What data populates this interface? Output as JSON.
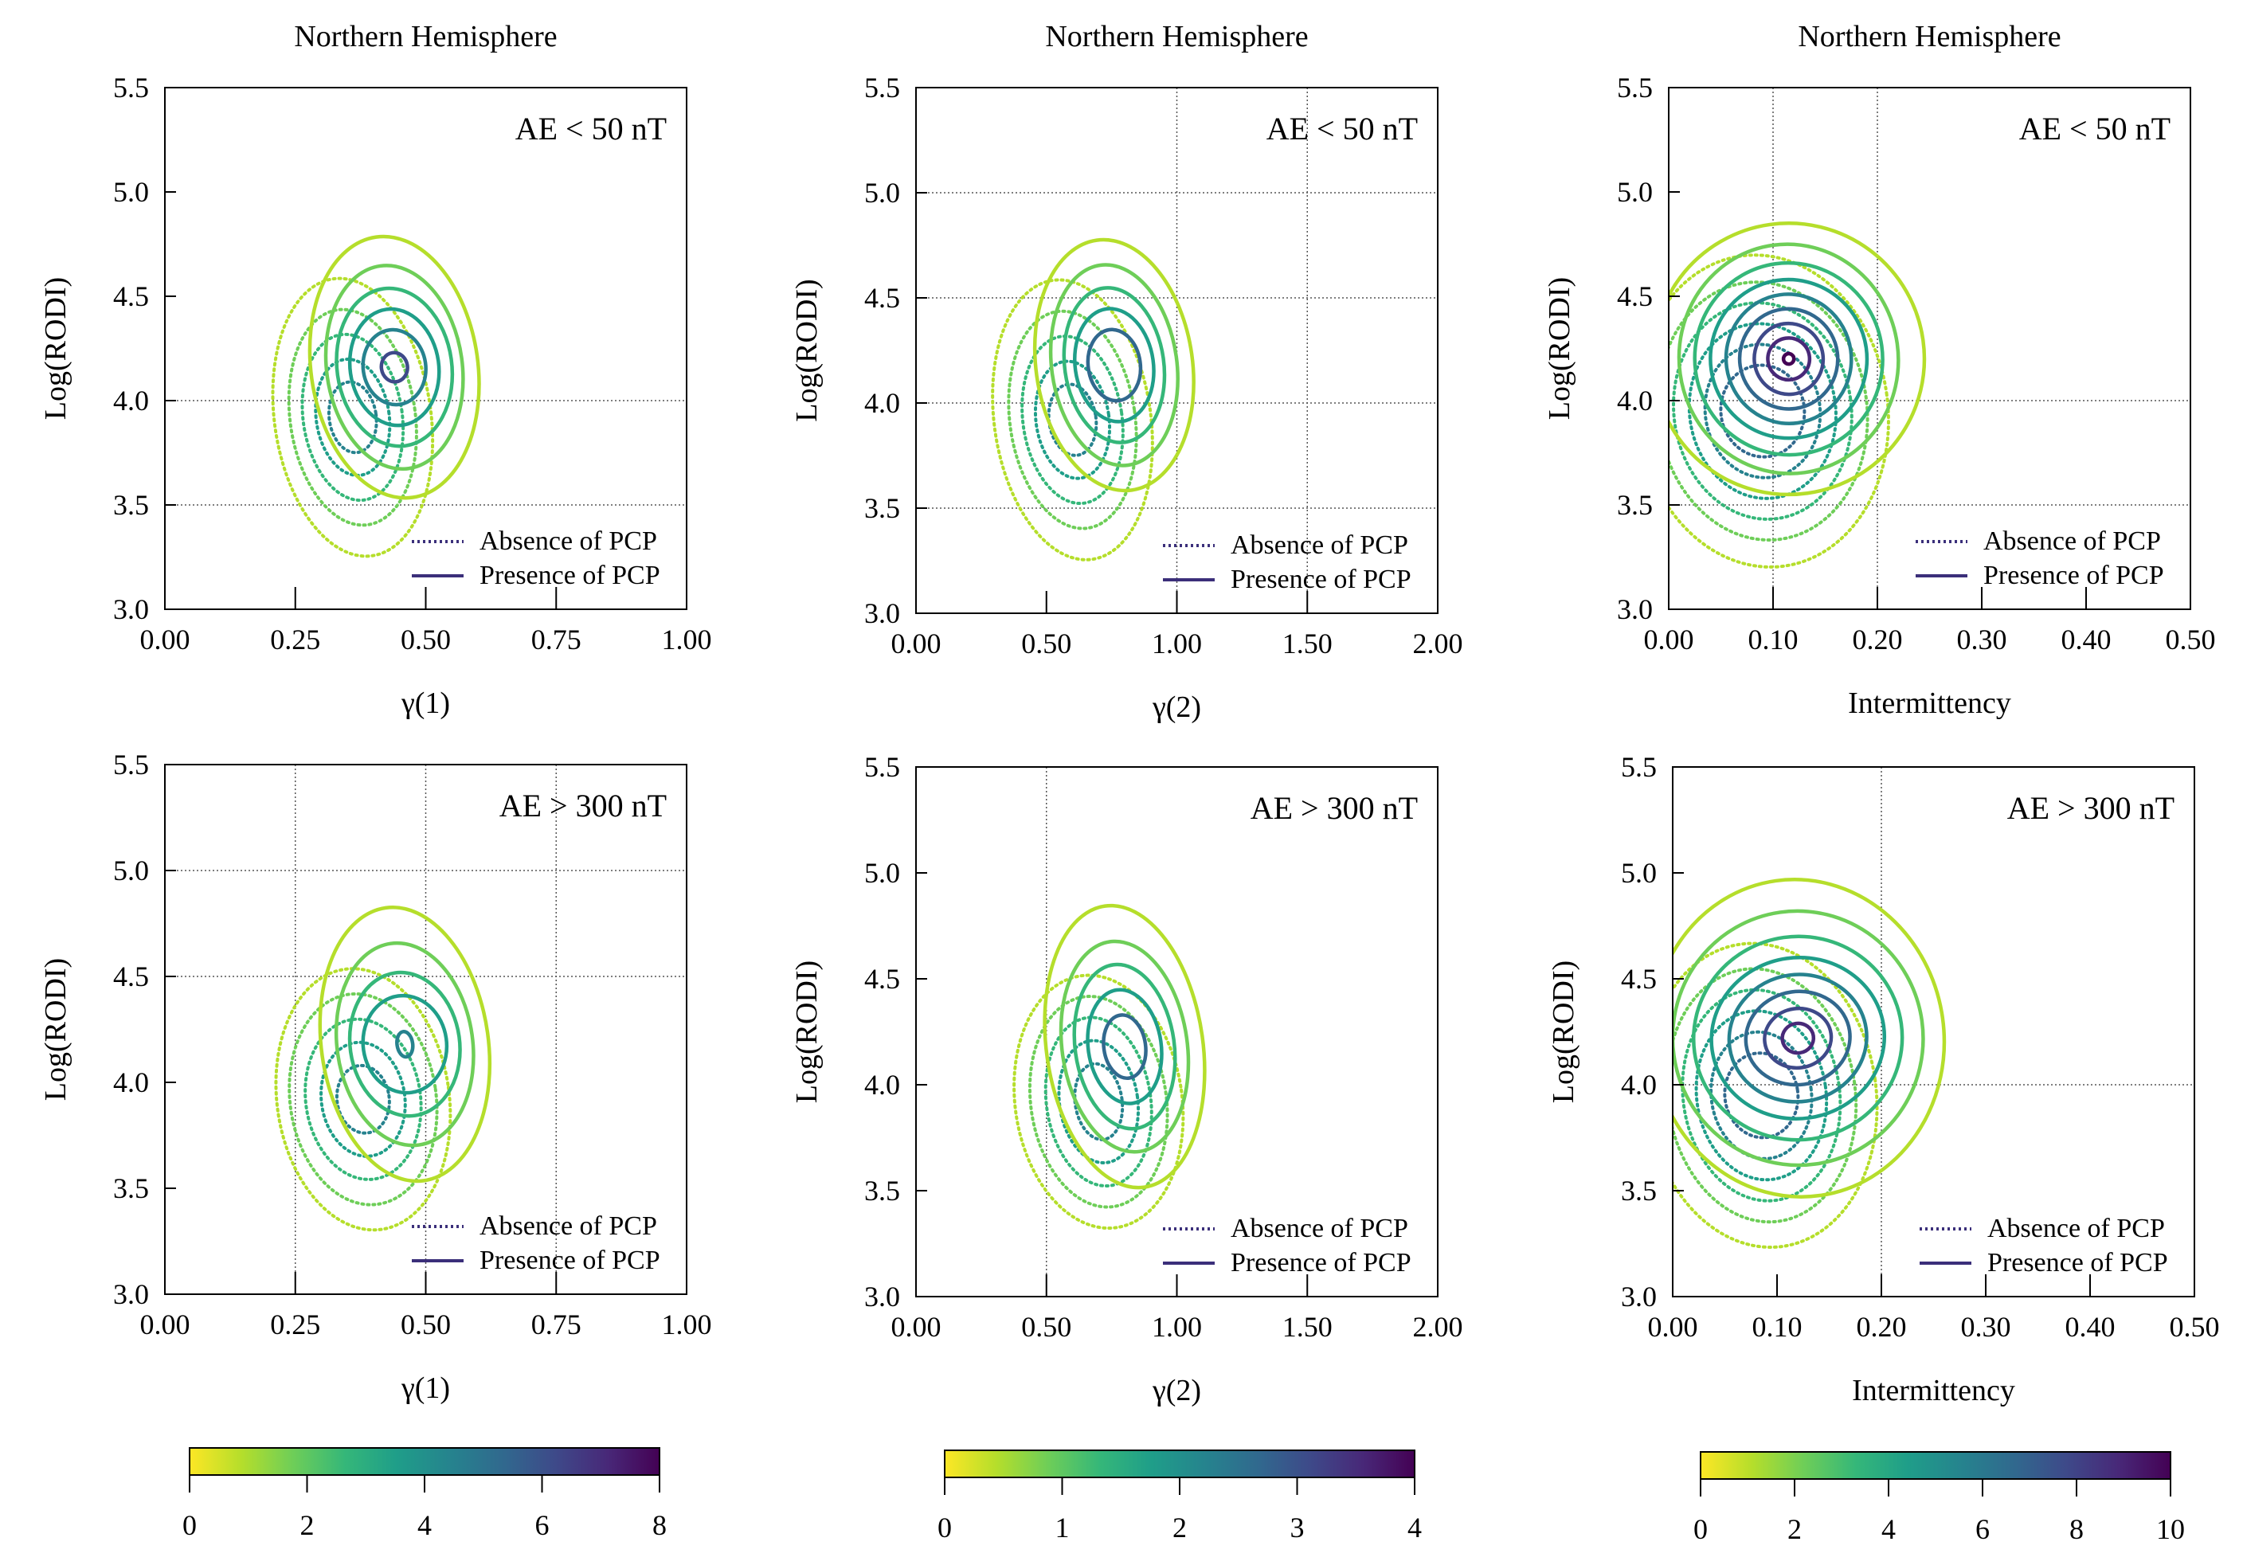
{
  "figure": {
    "hemisphere_title": "Northern Hemisphere",
    "legend_absence": "Absence of PCP",
    "legend_presence": "Presence of PCP"
  },
  "colorbars": [
    {
      "ticks": [
        "0",
        "2",
        "4",
        "6",
        "8"
      ],
      "min": 0,
      "max": 8
    },
    {
      "ticks": [
        "0",
        "1",
        "2",
        "3",
        "4"
      ],
      "min": 0,
      "max": 4
    },
    {
      "ticks": [
        "0",
        "2",
        "4",
        "6",
        "8",
        "10"
      ],
      "min": 0,
      "max": 10
    }
  ],
  "colormap": [
    "#fde725",
    "#b5de2b",
    "#6ece58",
    "#35b779",
    "#1f9e89",
    "#26828e",
    "#31688e",
    "#3e4989",
    "#482878",
    "#440154"
  ],
  "chart_data": [
    {
      "type": "contour",
      "title": "Northern Hemisphere",
      "annotation": "AE < 50 nT",
      "xlabel": "γ(1)",
      "ylabel": "Log(RODI)",
      "xlim": [
        0,
        1
      ],
      "ylim": [
        3.0,
        5.5
      ],
      "xticks": [
        "0.00",
        "0.25",
        "0.50",
        "0.75",
        "1.00"
      ],
      "yticks": [
        "3.0",
        "3.5",
        "4.0",
        "4.5",
        "5.0",
        "5.5"
      ],
      "grid_x": [],
      "grid_y": [
        3.5,
        4.0
      ],
      "series": [
        {
          "name": "Absence of PCP",
          "style": "dotted",
          "cx": 0.36,
          "cy": 3.92,
          "levels": [
            {
              "rx": 0.15,
              "ry": 0.67,
              "c": "#b5de2b"
            },
            {
              "rx": 0.12,
              "ry": 0.52,
              "c": "#6ece58"
            },
            {
              "rx": 0.095,
              "ry": 0.4,
              "c": "#35b779"
            },
            {
              "rx": 0.07,
              "ry": 0.28,
              "c": "#1f9e89"
            },
            {
              "rx": 0.045,
              "ry": 0.17,
              "c": "#26828e"
            }
          ]
        },
        {
          "name": "Presence of PCP",
          "style": "solid",
          "cx": 0.44,
          "cy": 4.16,
          "levels": [
            {
              "rx": 0.16,
              "ry": 0.63,
              "c": "#b5de2b"
            },
            {
              "rx": 0.13,
              "ry": 0.49,
              "c": "#6ece58"
            },
            {
              "rx": 0.11,
              "ry": 0.38,
              "c": "#35b779"
            },
            {
              "rx": 0.085,
              "ry": 0.28,
              "c": "#1f9e89"
            },
            {
              "rx": 0.06,
              "ry": 0.18,
              "c": "#26828e"
            },
            {
              "rx": 0.025,
              "ry": 0.07,
              "c": "#3e4989"
            }
          ]
        }
      ]
    },
    {
      "type": "contour",
      "title": "Northern Hemisphere",
      "annotation": "AE < 50 nT",
      "xlabel": "γ(2)",
      "ylabel": "Log(RODI)",
      "xlim": [
        0,
        2
      ],
      "ylim": [
        3.0,
        5.5
      ],
      "xticks": [
        "0.00",
        "0.50",
        "1.00",
        "1.50",
        "2.00"
      ],
      "yticks": [
        "3.0",
        "3.5",
        "4.0",
        "4.5",
        "5.0",
        "5.5"
      ],
      "grid_x": [
        1.0,
        1.5
      ],
      "grid_y": [
        3.5,
        4.0,
        4.5,
        5.0
      ],
      "series": [
        {
          "name": "Absence of PCP",
          "style": "dotted",
          "cx": 0.6,
          "cy": 3.92,
          "levels": [
            {
              "rx": 0.3,
              "ry": 0.67,
              "c": "#b5de2b"
            },
            {
              "rx": 0.24,
              "ry": 0.52,
              "c": "#6ece58"
            },
            {
              "rx": 0.19,
              "ry": 0.4,
              "c": "#35b779"
            },
            {
              "rx": 0.14,
              "ry": 0.28,
              "c": "#1f9e89"
            },
            {
              "rx": 0.09,
              "ry": 0.17,
              "c": "#26828e"
            }
          ]
        },
        {
          "name": "Presence of PCP",
          "style": "solid",
          "cx": 0.76,
          "cy": 4.18,
          "levels": [
            {
              "rx": 0.3,
              "ry": 0.6,
              "c": "#b5de2b"
            },
            {
              "rx": 0.24,
              "ry": 0.48,
              "c": "#6ece58"
            },
            {
              "rx": 0.19,
              "ry": 0.37,
              "c": "#35b779"
            },
            {
              "rx": 0.15,
              "ry": 0.27,
              "c": "#1f9e89"
            },
            {
              "rx": 0.1,
              "ry": 0.17,
              "c": "#31688e"
            }
          ]
        }
      ]
    },
    {
      "type": "contour",
      "title": "Northern Hemisphere",
      "annotation": "AE < 50 nT",
      "xlabel": "Intermittency",
      "ylabel": "Log(RODI)",
      "xlim": [
        0,
        0.5
      ],
      "ylim": [
        3.0,
        5.5
      ],
      "xticks": [
        "0.00",
        "0.10",
        "0.20",
        "0.30",
        "0.40",
        "0.50"
      ],
      "yticks": [
        "3.0",
        "3.5",
        "4.0",
        "4.5",
        "5.0",
        "5.5"
      ],
      "grid_x": [
        0.1,
        0.2
      ],
      "grid_y": [
        3.5,
        4.0
      ],
      "series": [
        {
          "name": "Absence of PCP",
          "style": "dotted",
          "cx": 0.09,
          "cy": 3.95,
          "levels": [
            {
              "rx": 0.12,
              "ry": 0.75,
              "c": "#b5de2b"
            },
            {
              "rx": 0.1,
              "ry": 0.62,
              "c": "#6ece58"
            },
            {
              "rx": 0.085,
              "ry": 0.52,
              "c": "#35b779"
            },
            {
              "rx": 0.07,
              "ry": 0.42,
              "c": "#1f9e89"
            },
            {
              "rx": 0.055,
              "ry": 0.32,
              "c": "#26828e"
            },
            {
              "rx": 0.04,
              "ry": 0.22,
              "c": "#31688e"
            }
          ]
        },
        {
          "name": "Presence of PCP",
          "style": "solid",
          "cx": 0.115,
          "cy": 4.2,
          "levels": [
            {
              "rx": 0.13,
              "ry": 0.65,
              "c": "#b5de2b"
            },
            {
              "rx": 0.105,
              "ry": 0.55,
              "c": "#6ece58"
            },
            {
              "rx": 0.09,
              "ry": 0.46,
              "c": "#35b779"
            },
            {
              "rx": 0.075,
              "ry": 0.38,
              "c": "#1f9e89"
            },
            {
              "rx": 0.06,
              "ry": 0.31,
              "c": "#26828e"
            },
            {
              "rx": 0.047,
              "ry": 0.24,
              "c": "#31688e"
            },
            {
              "rx": 0.033,
              "ry": 0.17,
              "c": "#3e4989"
            },
            {
              "rx": 0.02,
              "ry": 0.1,
              "c": "#482878"
            },
            {
              "rx": 0.005,
              "ry": 0.025,
              "c": "#440154"
            }
          ]
        }
      ]
    },
    {
      "type": "contour",
      "title": "",
      "annotation": "AE > 300 nT",
      "xlabel": "γ(1)",
      "ylabel": "Log(RODI)",
      "xlim": [
        0,
        1
      ],
      "ylim": [
        3.0,
        5.5
      ],
      "xticks": [
        "0.00",
        "0.25",
        "0.50",
        "0.75",
        "1.00"
      ],
      "yticks": [
        "3.0",
        "3.5",
        "4.0",
        "4.5",
        "5.0",
        "5.5"
      ],
      "grid_x": [
        0.25,
        0.5,
        0.75
      ],
      "grid_y": [
        4.5,
        5.0
      ],
      "series": [
        {
          "name": "Absence of PCP",
          "style": "dotted",
          "cx": 0.38,
          "cy": 3.92,
          "levels": [
            {
              "rx": 0.165,
              "ry": 0.62,
              "c": "#b5de2b"
            },
            {
              "rx": 0.14,
              "ry": 0.5,
              "c": "#6ece58"
            },
            {
              "rx": 0.11,
              "ry": 0.38,
              "c": "#35b779"
            },
            {
              "rx": 0.08,
              "ry": 0.27,
              "c": "#1f9e89"
            },
            {
              "rx": 0.05,
              "ry": 0.16,
              "c": "#26828e"
            }
          ]
        },
        {
          "name": "Presence of PCP",
          "style": "solid",
          "cx": 0.46,
          "cy": 4.18,
          "levels": [
            {
              "rx": 0.16,
              "ry": 0.65,
              "c": "#b5de2b"
            },
            {
              "rx": 0.13,
              "ry": 0.48,
              "c": "#6ece58"
            },
            {
              "rx": 0.105,
              "ry": 0.34,
              "c": "#35b779"
            },
            {
              "rx": 0.08,
              "ry": 0.23,
              "c": "#1f9e89"
            },
            {
              "rx": 0.015,
              "ry": 0.06,
              "c": "#26828e"
            }
          ]
        }
      ]
    },
    {
      "type": "contour",
      "title": "",
      "annotation": "AE > 300 nT",
      "xlabel": "γ(2)",
      "ylabel": "Log(RODI)",
      "xlim": [
        0,
        2
      ],
      "ylim": [
        3.0,
        5.5
      ],
      "xticks": [
        "0.00",
        "0.50",
        "1.00",
        "1.50",
        "2.00"
      ],
      "yticks": [
        "3.0",
        "3.5",
        "4.0",
        "4.5",
        "5.0",
        "5.5"
      ],
      "grid_x": [
        0.5
      ],
      "grid_y": [],
      "series": [
        {
          "name": "Absence of PCP",
          "style": "dotted",
          "cx": 0.7,
          "cy": 3.92,
          "levels": [
            {
              "rx": 0.32,
              "ry": 0.6,
              "c": "#b5de2b"
            },
            {
              "rx": 0.26,
              "ry": 0.5,
              "c": "#6ece58"
            },
            {
              "rx": 0.2,
              "ry": 0.4,
              "c": "#35b779"
            },
            {
              "rx": 0.15,
              "ry": 0.29,
              "c": "#1f9e89"
            },
            {
              "rx": 0.09,
              "ry": 0.18,
              "c": "#26828e"
            }
          ]
        },
        {
          "name": "Presence of PCP",
          "style": "solid",
          "cx": 0.8,
          "cy": 4.18,
          "levels": [
            {
              "rx": 0.3,
              "ry": 0.67,
              "c": "#b5de2b"
            },
            {
              "rx": 0.24,
              "ry": 0.5,
              "c": "#6ece58"
            },
            {
              "rx": 0.19,
              "ry": 0.39,
              "c": "#35b779"
            },
            {
              "rx": 0.14,
              "ry": 0.27,
              "c": "#1f9e89"
            },
            {
              "rx": 0.08,
              "ry": 0.15,
              "c": "#31688e"
            }
          ]
        }
      ]
    },
    {
      "type": "contour",
      "title": "",
      "annotation": "AE > 300 nT",
      "xlabel": "Intermittency",
      "ylabel": "Log(RODI)",
      "xlim": [
        0,
        0.5
      ],
      "ylim": [
        3.0,
        5.5
      ],
      "xticks": [
        "0.00",
        "0.10",
        "0.20",
        "0.30",
        "0.40",
        "0.50"
      ],
      "yticks": [
        "3.0",
        "3.5",
        "4.0",
        "4.5",
        "5.0",
        "5.5"
      ],
      "grid_x": [
        0.2
      ],
      "grid_y": [
        4.0
      ],
      "series": [
        {
          "name": "Absence of PCP",
          "style": "dotted",
          "cx": 0.085,
          "cy": 3.95,
          "levels": [
            {
              "rx": 0.11,
              "ry": 0.72,
              "c": "#b5de2b"
            },
            {
              "rx": 0.09,
              "ry": 0.6,
              "c": "#6ece58"
            },
            {
              "rx": 0.075,
              "ry": 0.5,
              "c": "#35b779"
            },
            {
              "rx": 0.062,
              "ry": 0.4,
              "c": "#1f9e89"
            },
            {
              "rx": 0.048,
              "ry": 0.3,
              "c": "#26828e"
            },
            {
              "rx": 0.035,
              "ry": 0.2,
              "c": "#31688e"
            }
          ]
        },
        {
          "name": "Presence of PCP",
          "style": "solid",
          "cx": 0.12,
          "cy": 4.22,
          "levels": [
            {
              "rx": 0.14,
              "ry": 0.75,
              "c": "#b5de2b"
            },
            {
              "rx": 0.12,
              "ry": 0.6,
              "c": "#6ece58"
            },
            {
              "rx": 0.1,
              "ry": 0.48,
              "c": "#35b779"
            },
            {
              "rx": 0.083,
              "ry": 0.38,
              "c": "#1f9e89"
            },
            {
              "rx": 0.066,
              "ry": 0.3,
              "c": "#26828e"
            },
            {
              "rx": 0.05,
              "ry": 0.22,
              "c": "#31688e"
            },
            {
              "rx": 0.032,
              "ry": 0.14,
              "c": "#3e4989"
            },
            {
              "rx": 0.015,
              "ry": 0.07,
              "c": "#482878"
            }
          ]
        }
      ]
    }
  ]
}
